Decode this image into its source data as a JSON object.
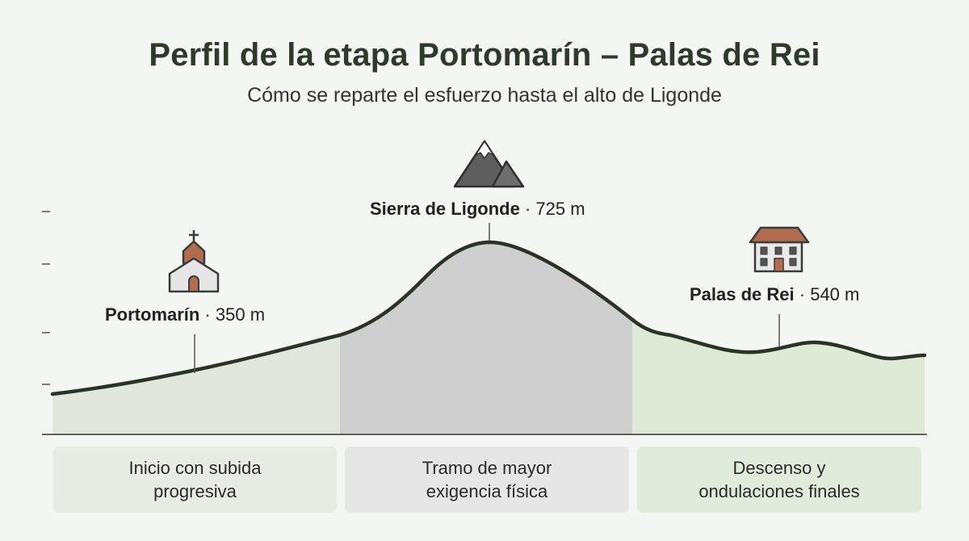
{
  "title": "Perfil de la etapa Portomarín – Palas de Rei",
  "subtitle": "Cómo se reparte el esfuerzo hasta el alto de Ligonde",
  "points": {
    "start": {
      "name": "Portomarín",
      "sep": " · ",
      "elevation": "350 m",
      "icon": "church-icon"
    },
    "peak": {
      "name": "Sierra de Ligonde",
      "sep": " · ",
      "elevation": "725 m",
      "icon": "mountain-icon"
    },
    "end": {
      "name": "Palas de Rei",
      "sep": " · ",
      "elevation": "540 m",
      "icon": "building-icon"
    }
  },
  "sections": [
    {
      "line1": "Inicio con subida",
      "line2": "progresiva",
      "color": "#e7ebe4"
    },
    {
      "line1": "Tramo de mayor",
      "line2": "exigencia física",
      "color": "#e7e6e7"
    },
    {
      "line1": "Descenso y",
      "line2": "ondulaciones finales",
      "color": "#e0ebdb"
    }
  ],
  "colors": {
    "profile_line": "#2a3426",
    "section_start_fill": "#e2e6de",
    "section_peak_fill": "#cfcfcf",
    "section_end_fill": "#dfe9d7"
  }
}
